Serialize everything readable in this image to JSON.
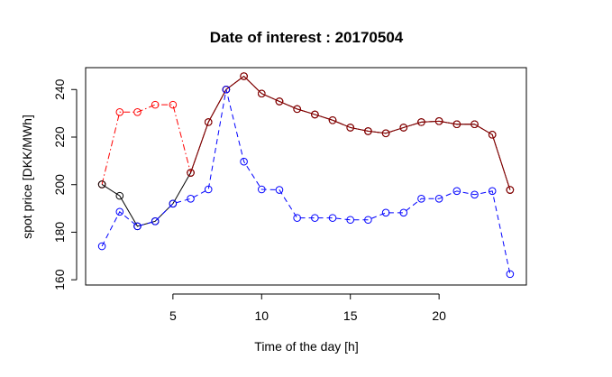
{
  "chart_data": {
    "type": "line",
    "title": "Date of interest : 20170504",
    "xlabel": "Time of the day [h]",
    "ylabel": "spot price [DKK/MWh]",
    "xlim": [
      0.08,
      24.92
    ],
    "ylim": [
      157.8,
      249.2
    ],
    "xticks": [
      5,
      10,
      15,
      20
    ],
    "yticks": [
      160,
      180,
      200,
      220,
      240
    ],
    "grid": false,
    "legend": "none",
    "x": [
      1,
      2,
      3,
      4,
      5,
      6,
      7,
      8,
      9,
      10,
      11,
      12,
      13,
      14,
      15,
      16,
      17,
      18,
      19,
      20,
      21,
      22,
      23,
      24
    ],
    "series": [
      {
        "color": "#ff0000",
        "line_style": "dashdot",
        "marker": "open-circle",
        "values": [
          200.1,
          230.5,
          230.5,
          233.6,
          233.6,
          205.0,
          226.3,
          240.0,
          245.6,
          238.3,
          235.0,
          231.8,
          229.5,
          227.1,
          224.0,
          222.5,
          221.6,
          224.0,
          226.3,
          226.7,
          225.4,
          225.4,
          221.0,
          197.8
        ]
      },
      {
        "color": "#000000",
        "line_style": "solid",
        "marker": "open-circle",
        "values": [
          200.1,
          195.3,
          182.5,
          184.6,
          192.0,
          205.0,
          226.3,
          240.0,
          245.6,
          238.3,
          235.0,
          231.8,
          229.5,
          227.1,
          224.0,
          222.5,
          221.6,
          224.0,
          226.3,
          226.7,
          225.4,
          225.4,
          221.0,
          197.8
        ]
      },
      {
        "color": "#8b0000",
        "line_style": "solid",
        "marker": "open-circle",
        "values": [
          null,
          null,
          null,
          null,
          null,
          205.0,
          226.3,
          240.0,
          245.6,
          238.3,
          235.0,
          231.8,
          229.5,
          227.1,
          224.0,
          222.5,
          221.6,
          224.0,
          226.3,
          226.7,
          225.4,
          225.4,
          221.0,
          197.8
        ]
      },
      {
        "color": "#0000ff",
        "line_style": "dashed",
        "marker": "open-circle",
        "values": [
          174.1,
          188.6,
          182.5,
          184.6,
          192.0,
          194.1,
          198.0,
          240.0,
          209.7,
          198.0,
          197.8,
          186.0,
          186.0,
          186.0,
          185.2,
          185.2,
          188.2,
          188.2,
          194.1,
          194.1,
          197.3,
          195.8,
          197.3,
          162.4
        ]
      }
    ]
  }
}
